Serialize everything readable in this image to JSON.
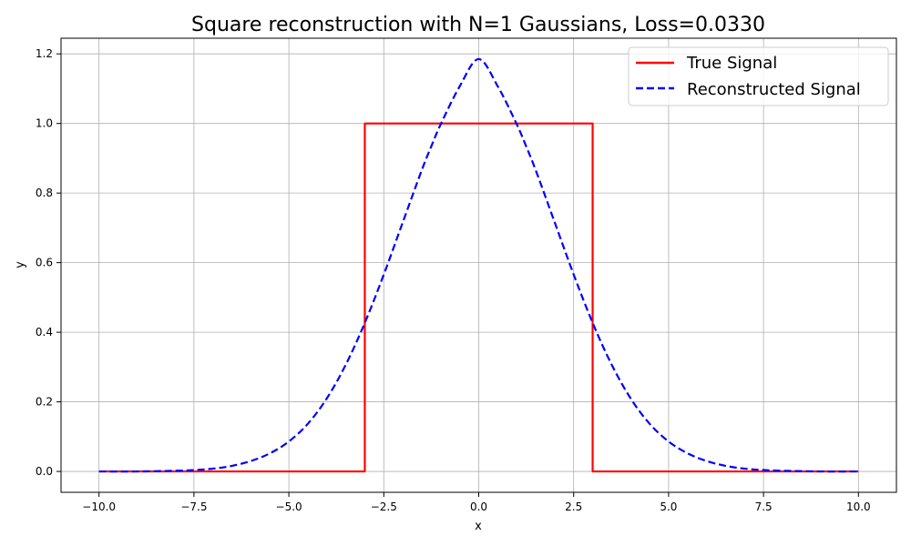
{
  "chart_data": {
    "type": "line",
    "title": "Square reconstruction with N=1 Gaussians, Loss=0.0330",
    "xlabel": "x",
    "ylabel": "y",
    "xlim": [
      -11,
      11
    ],
    "ylim": [
      -0.06,
      1.245
    ],
    "xticks": [
      -10.0,
      -7.5,
      -5.0,
      -2.5,
      0.0,
      2.5,
      5.0,
      7.5,
      10.0
    ],
    "xtick_labels": [
      "−10.0",
      "−7.5",
      "−5.0",
      "−2.5",
      "0.0",
      "2.5",
      "5.0",
      "7.5",
      "10.0"
    ],
    "yticks": [
      0.0,
      0.2,
      0.4,
      0.6,
      0.8,
      1.0,
      1.2
    ],
    "ytick_labels": [
      "0.0",
      "0.2",
      "0.4",
      "0.6",
      "0.8",
      "1.0",
      "1.2"
    ],
    "grid": true,
    "legend_position": "top-right",
    "series": [
      {
        "name": "True Signal",
        "color": "#ff0000",
        "style": "solid",
        "x": [
          -10,
          -3,
          -3,
          3,
          3,
          10
        ],
        "y": [
          0,
          0,
          1,
          1,
          0,
          0
        ]
      },
      {
        "name": "Reconstructed Signal",
        "color": "#0000ff",
        "style": "dashed",
        "x": [
          -10,
          -9,
          -8,
          -7.5,
          -7,
          -6.5,
          -6,
          -5.5,
          -5,
          -4.5,
          -4,
          -3.5,
          -3,
          -2.5,
          -2,
          -1.5,
          -1.25,
          -1,
          -0.5,
          0,
          0.5,
          1,
          1.25,
          1.5,
          2,
          2.5,
          3,
          3.5,
          4,
          4.5,
          5,
          5.5,
          6,
          6.5,
          7,
          7.5,
          8,
          9,
          10
        ],
        "y": [
          0.0,
          0.0,
          0.002,
          0.004,
          0.008,
          0.016,
          0.03,
          0.052,
          0.086,
          0.137,
          0.21,
          0.307,
          0.427,
          0.566,
          0.716,
          0.866,
          0.934,
          0.998,
          1.107,
          1.185,
          1.107,
          0.998,
          0.934,
          0.866,
          0.716,
          0.566,
          0.427,
          0.307,
          0.21,
          0.137,
          0.086,
          0.052,
          0.03,
          0.016,
          0.008,
          0.004,
          0.002,
          0.0,
          0.0
        ]
      }
    ]
  }
}
